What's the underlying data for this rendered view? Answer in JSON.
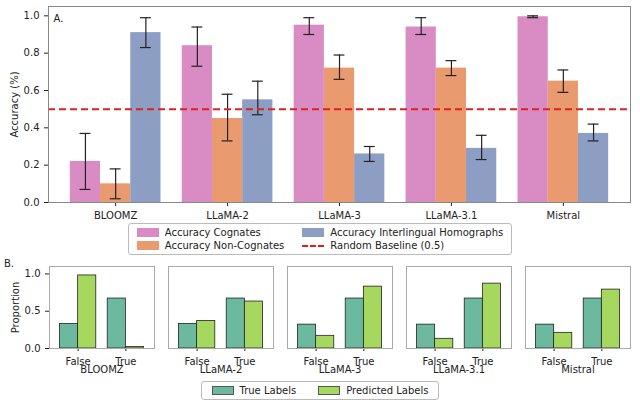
{
  "chart_data": [
    {
      "type": "bar",
      "panel_label": "A.",
      "ylabel": "Accuracy (%)",
      "categories": [
        "BLOOMZ",
        "LLaMA-2",
        "LLaMA-3",
        "LLaMA-3.1",
        "Mistral"
      ],
      "series": [
        {
          "name": "Accuracy Cognates",
          "color": "#d98cc3",
          "values": [
            0.22,
            0.84,
            0.95,
            0.94,
            0.995
          ],
          "error_lower": [
            0.07,
            0.73,
            0.9,
            0.9,
            0.99
          ],
          "error_upper": [
            0.37,
            0.94,
            0.99,
            0.99,
            1.0
          ]
        },
        {
          "name": "Accuracy Non-Cognates",
          "color": "#e99a6f",
          "values": [
            0.1,
            0.45,
            0.72,
            0.72,
            0.65
          ],
          "error_lower": [
            0.02,
            0.33,
            0.66,
            0.68,
            0.59
          ],
          "error_upper": [
            0.18,
            0.58,
            0.79,
            0.76,
            0.71
          ]
        },
        {
          "name": "Accuracy Interlingual Homographs",
          "color": "#8c9ec4",
          "values": [
            0.91,
            0.55,
            0.26,
            0.29,
            0.37
          ],
          "error_lower": [
            0.83,
            0.47,
            0.22,
            0.23,
            0.33
          ],
          "error_upper": [
            0.99,
            0.65,
            0.3,
            0.36,
            0.42
          ]
        }
      ],
      "baseline": {
        "value": 0.5,
        "label": "Random Baseline (0.5)",
        "color": "#e02020",
        "line_style": "dashed"
      },
      "ylim": [
        0,
        1.05
      ],
      "yticks": [
        {
          "value": 0,
          "label": "0.0"
        },
        {
          "value": 0.2,
          "label": "0.2"
        },
        {
          "value": 0.4,
          "label": "0.4"
        },
        {
          "value": 0.6,
          "label": "0.6"
        },
        {
          "value": 0.8,
          "label": "0.8"
        },
        {
          "value": 1,
          "label": "1.0"
        }
      ],
      "grid": false
    },
    {
      "type": "bar",
      "panel_label": "B.",
      "ylabel": "Proportion",
      "facets": [
        "BLOOMZ",
        "LLaMA-2",
        "LLaMA-3",
        "LLaMA-3.1",
        "Mistral"
      ],
      "categories": [
        "False",
        "True"
      ],
      "series": [
        {
          "name": "True Labels",
          "color": "#6cb9a0",
          "values": [
            [
              0.33,
              0.67
            ],
            [
              0.33,
              0.67
            ],
            [
              0.32,
              0.67
            ],
            [
              0.32,
              0.67
            ],
            [
              0.32,
              0.67
            ]
          ]
        },
        {
          "name": "Predicted Labels",
          "color": "#a6d75f",
          "values": [
            [
              0.98,
              0.02
            ],
            [
              0.37,
              0.63
            ],
            [
              0.17,
              0.83
            ],
            [
              0.13,
              0.87
            ],
            [
              0.21,
              0.79
            ]
          ]
        }
      ],
      "ylim": [
        0,
        1.1
      ],
      "yticks": [
        {
          "value": 0,
          "label": "0.0"
        },
        {
          "value": 0.5,
          "label": "0.5"
        },
        {
          "value": 1,
          "label": "1.0"
        }
      ],
      "grid": false
    }
  ]
}
